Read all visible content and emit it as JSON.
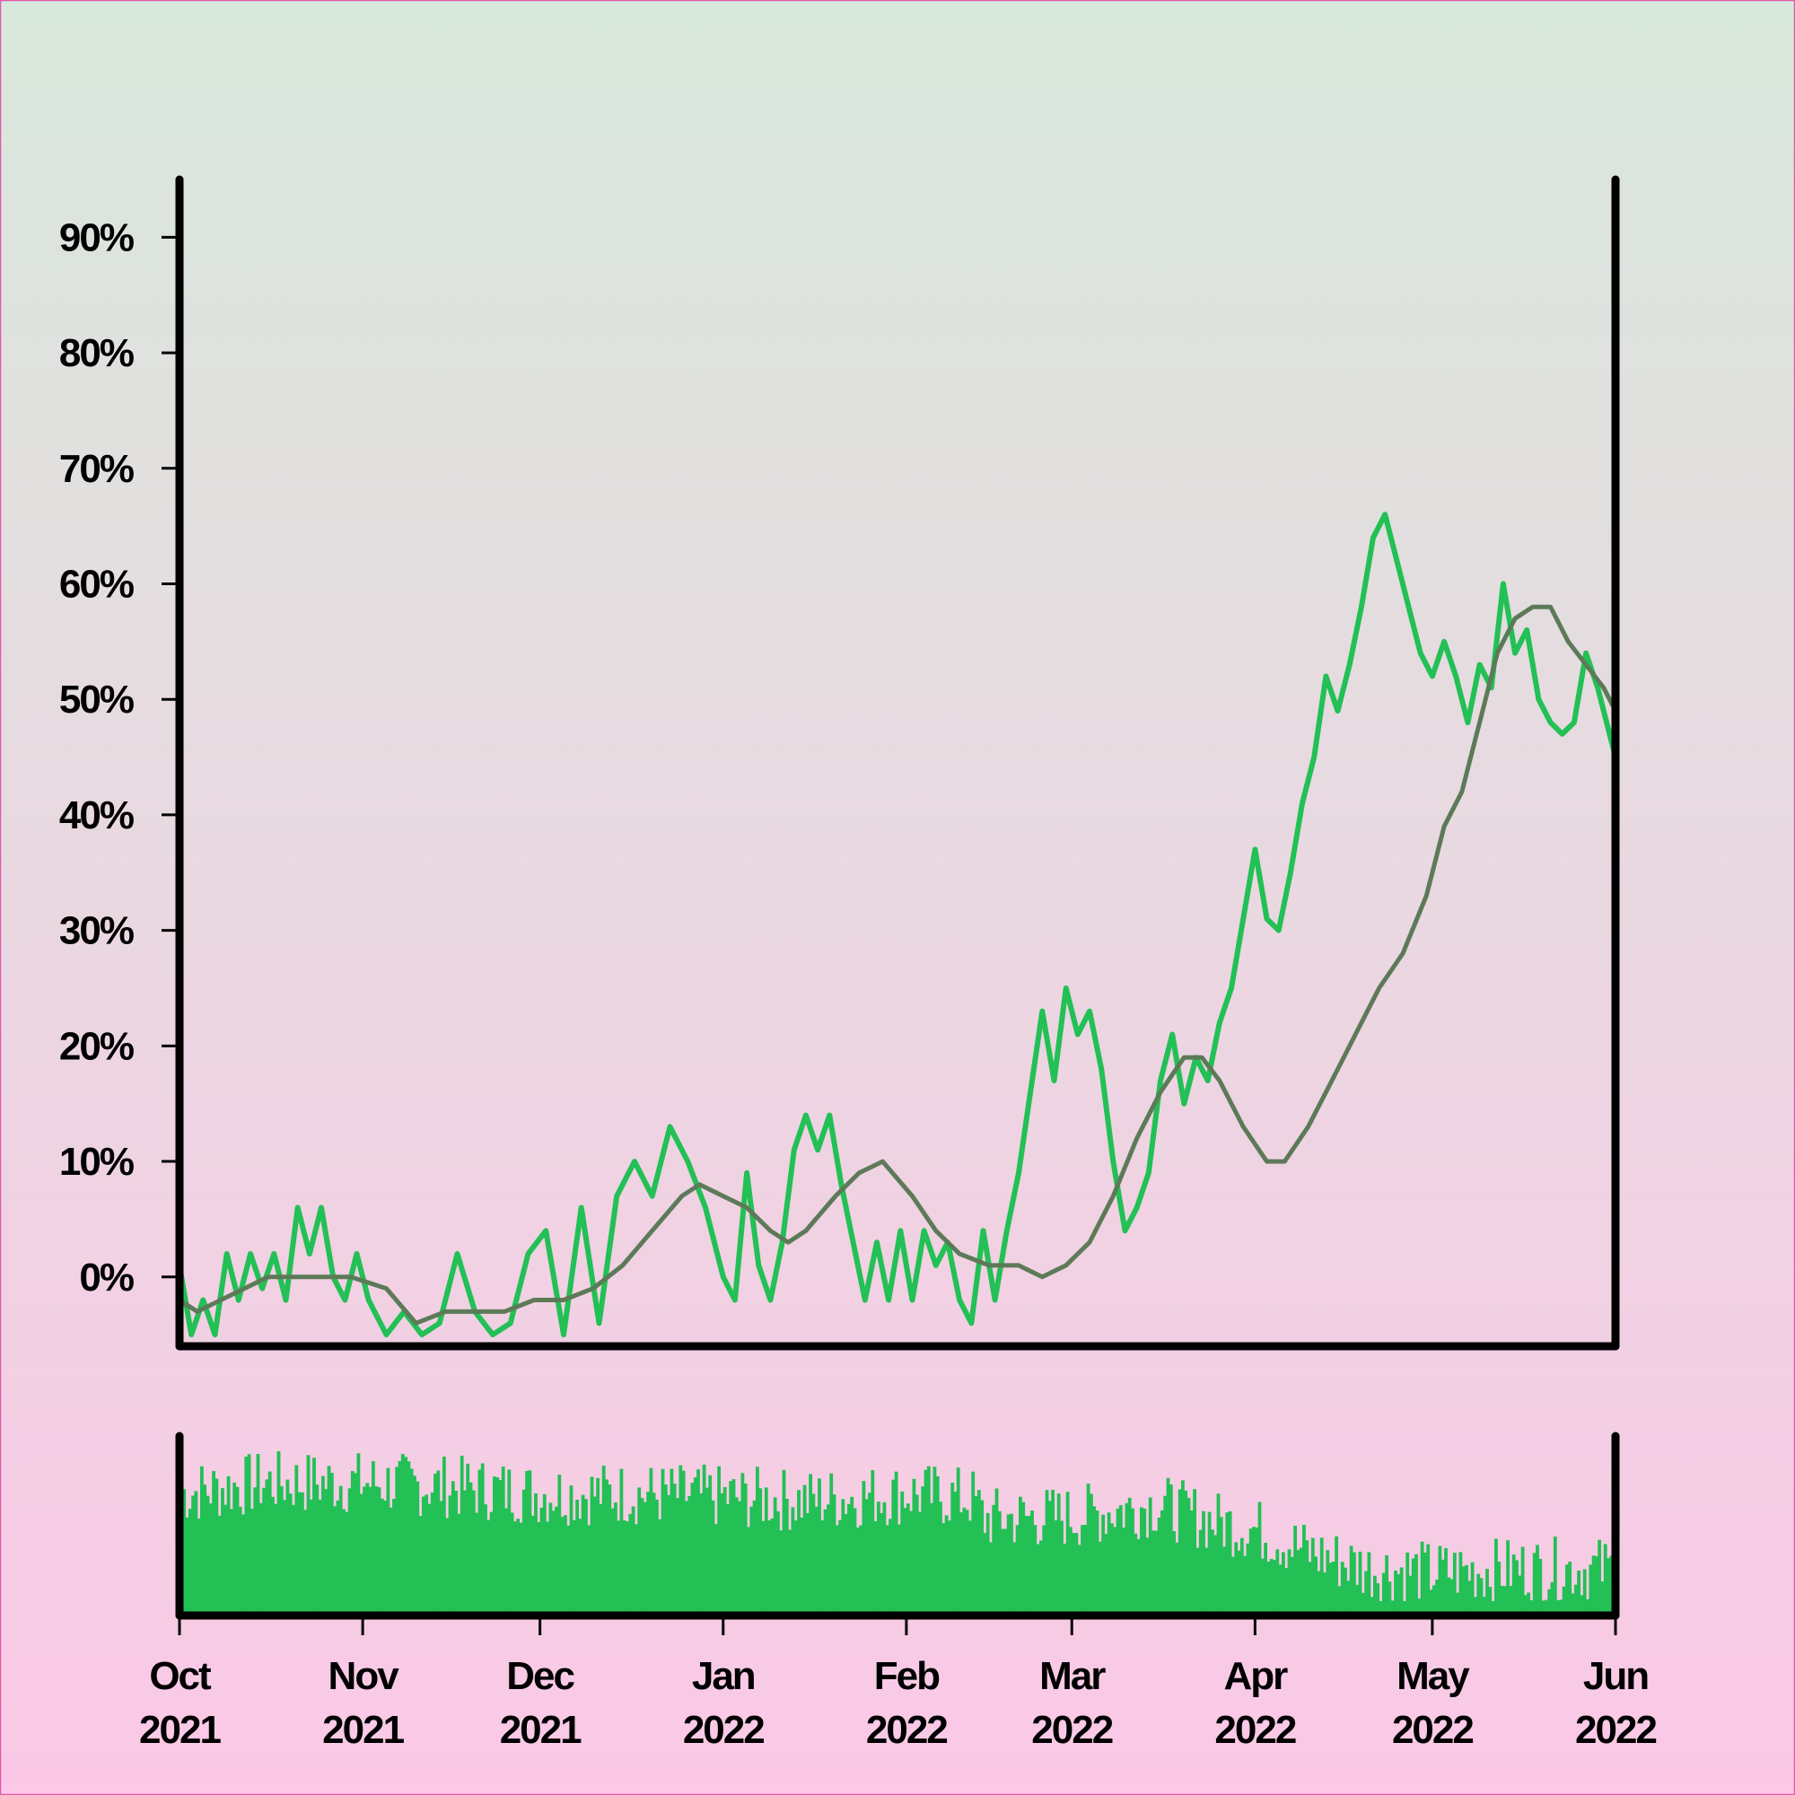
{
  "chart_data": {
    "type": "line",
    "title": "",
    "xlabel": "",
    "ylabel": "",
    "x_range": [
      "2021-10-01",
      "2022-06-01"
    ],
    "ylim": [
      -6,
      95
    ],
    "y_ticks": [
      0,
      10,
      20,
      30,
      40,
      50,
      60,
      70,
      80,
      90
    ],
    "y_tick_labels": [
      "0%",
      "10%",
      "20%",
      "30%",
      "40%",
      "50%",
      "60%",
      "70%",
      "80%",
      "90%"
    ],
    "x_ticks": [
      "2021-10-01",
      "2021-11-01",
      "2021-12-01",
      "2022-01-01",
      "2022-02-01",
      "2022-03-01",
      "2022-04-01",
      "2022-05-01",
      "2022-06-01"
    ],
    "x_tick_labels": [
      {
        "month": "Oct",
        "year": "2021"
      },
      {
        "month": "Nov",
        "year": "2021"
      },
      {
        "month": "Dec",
        "year": "2021"
      },
      {
        "month": "Jan",
        "year": "2022"
      },
      {
        "month": "Feb",
        "year": "2022"
      },
      {
        "month": "Mar",
        "year": "2022"
      },
      {
        "month": "Apr",
        "year": "2022"
      },
      {
        "month": "May",
        "year": "2022"
      },
      {
        "month": "Jun",
        "year": "2022"
      }
    ],
    "grid": false,
    "legend": "none",
    "colors": {
      "value": "#22c055",
      "moving_average": "#5d7a58",
      "volume": "#22c055",
      "axis": "#000000"
    },
    "series": [
      {
        "values": [
          [
            "2021-10-01",
            1
          ],
          [
            "2021-10-03",
            -5
          ],
          [
            "2021-10-05",
            -2
          ],
          [
            "2021-10-07",
            -5
          ],
          [
            "2021-10-09",
            2
          ],
          [
            "2021-10-11",
            -2
          ],
          [
            "2021-10-13",
            2
          ],
          [
            "2021-10-15",
            -1
          ],
          [
            "2021-10-17",
            2
          ],
          [
            "2021-10-19",
            -2
          ],
          [
            "2021-10-21",
            6
          ],
          [
            "2021-10-23",
            2
          ],
          [
            "2021-10-25",
            6
          ],
          [
            "2021-10-27",
            0
          ],
          [
            "2021-10-29",
            -2
          ],
          [
            "2021-10-31",
            2
          ],
          [
            "2021-11-02",
            -2
          ],
          [
            "2021-11-05",
            -5
          ],
          [
            "2021-11-08",
            -3
          ],
          [
            "2021-11-11",
            -5
          ],
          [
            "2021-11-14",
            -4
          ],
          [
            "2021-11-17",
            2
          ],
          [
            "2021-11-20",
            -3
          ],
          [
            "2021-11-23",
            -5
          ],
          [
            "2021-11-26",
            -4
          ],
          [
            "2021-11-29",
            2
          ],
          [
            "2021-12-02",
            4
          ],
          [
            "2021-12-05",
            -5
          ],
          [
            "2021-12-08",
            6
          ],
          [
            "2021-12-11",
            -4
          ],
          [
            "2021-12-14",
            7
          ],
          [
            "2021-12-17",
            10
          ],
          [
            "2021-12-20",
            7
          ],
          [
            "2021-12-23",
            13
          ],
          [
            "2021-12-26",
            10
          ],
          [
            "2021-12-29",
            6
          ],
          [
            "2022-01-01",
            0
          ],
          [
            "2022-01-03",
            -2
          ],
          [
            "2022-01-05",
            9
          ],
          [
            "2022-01-07",
            1
          ],
          [
            "2022-01-09",
            -2
          ],
          [
            "2022-01-11",
            3
          ],
          [
            "2022-01-13",
            11
          ],
          [
            "2022-01-15",
            14
          ],
          [
            "2022-01-17",
            11
          ],
          [
            "2022-01-19",
            14
          ],
          [
            "2022-01-21",
            8
          ],
          [
            "2022-01-23",
            3
          ],
          [
            "2022-01-25",
            -2
          ],
          [
            "2022-01-27",
            3
          ],
          [
            "2022-01-29",
            -2
          ],
          [
            "2022-01-31",
            4
          ],
          [
            "2022-02-02",
            -2
          ],
          [
            "2022-02-04",
            4
          ],
          [
            "2022-02-06",
            1
          ],
          [
            "2022-02-08",
            3
          ],
          [
            "2022-02-10",
            -2
          ],
          [
            "2022-02-12",
            -4
          ],
          [
            "2022-02-14",
            4
          ],
          [
            "2022-02-16",
            -2
          ],
          [
            "2022-02-18",
            4
          ],
          [
            "2022-02-20",
            9
          ],
          [
            "2022-02-22",
            16
          ],
          [
            "2022-02-24",
            23
          ],
          [
            "2022-02-26",
            17
          ],
          [
            "2022-02-28",
            25
          ],
          [
            "2022-03-02",
            21
          ],
          [
            "2022-03-04",
            23
          ],
          [
            "2022-03-06",
            18
          ],
          [
            "2022-03-08",
            10
          ],
          [
            "2022-03-10",
            4
          ],
          [
            "2022-03-12",
            6
          ],
          [
            "2022-03-14",
            9
          ],
          [
            "2022-03-16",
            17
          ],
          [
            "2022-03-18",
            21
          ],
          [
            "2022-03-20",
            15
          ],
          [
            "2022-03-22",
            19
          ],
          [
            "2022-03-24",
            17
          ],
          [
            "2022-03-26",
            22
          ],
          [
            "2022-03-28",
            25
          ],
          [
            "2022-03-30",
            31
          ],
          [
            "2022-04-01",
            37
          ],
          [
            "2022-04-03",
            31
          ],
          [
            "2022-04-05",
            30
          ],
          [
            "2022-04-07",
            35
          ],
          [
            "2022-04-09",
            41
          ],
          [
            "2022-04-11",
            45
          ],
          [
            "2022-04-13",
            52
          ],
          [
            "2022-04-15",
            49
          ],
          [
            "2022-04-17",
            53
          ],
          [
            "2022-04-19",
            58
          ],
          [
            "2022-04-21",
            64
          ],
          [
            "2022-04-23",
            66
          ],
          [
            "2022-04-25",
            62
          ],
          [
            "2022-04-27",
            58
          ],
          [
            "2022-04-29",
            54
          ],
          [
            "2022-05-01",
            52
          ],
          [
            "2022-05-03",
            55
          ],
          [
            "2022-05-05",
            52
          ],
          [
            "2022-05-07",
            48
          ],
          [
            "2022-05-09",
            53
          ],
          [
            "2022-05-11",
            51
          ],
          [
            "2022-05-13",
            60
          ],
          [
            "2022-05-15",
            54
          ],
          [
            "2022-05-17",
            56
          ],
          [
            "2022-05-19",
            50
          ],
          [
            "2022-05-21",
            48
          ],
          [
            "2022-05-23",
            47
          ],
          [
            "2022-05-25",
            48
          ],
          [
            "2022-05-27",
            54
          ],
          [
            "2022-05-29",
            51
          ],
          [
            "2022-06-01",
            45
          ]
        ]
      },
      {
        "values": [
          [
            "2021-10-01",
            -2
          ],
          [
            "2021-10-04",
            -3
          ],
          [
            "2021-10-08",
            -2
          ],
          [
            "2021-10-12",
            -1
          ],
          [
            "2021-10-16",
            0
          ],
          [
            "2021-10-20",
            0
          ],
          [
            "2021-10-25",
            0
          ],
          [
            "2021-10-30",
            0
          ],
          [
            "2021-11-05",
            -1
          ],
          [
            "2021-11-10",
            -4
          ],
          [
            "2021-11-15",
            -3
          ],
          [
            "2021-11-20",
            -3
          ],
          [
            "2021-11-25",
            -3
          ],
          [
            "2021-11-30",
            -2
          ],
          [
            "2021-12-05",
            -2
          ],
          [
            "2021-12-10",
            -1
          ],
          [
            "2021-12-15",
            1
          ],
          [
            "2021-12-20",
            4
          ],
          [
            "2021-12-25",
            7
          ],
          [
            "2021-12-28",
            8
          ],
          [
            "2022-01-01",
            7
          ],
          [
            "2022-01-05",
            6
          ],
          [
            "2022-01-09",
            4
          ],
          [
            "2022-01-12",
            3
          ],
          [
            "2022-01-15",
            4
          ],
          [
            "2022-01-20",
            7
          ],
          [
            "2022-01-24",
            9
          ],
          [
            "2022-01-28",
            10
          ],
          [
            "2022-02-02",
            7
          ],
          [
            "2022-02-06",
            4
          ],
          [
            "2022-02-10",
            2
          ],
          [
            "2022-02-15",
            1
          ],
          [
            "2022-02-20",
            1
          ],
          [
            "2022-02-24",
            0
          ],
          [
            "2022-02-28",
            1
          ],
          [
            "2022-03-04",
            3
          ],
          [
            "2022-03-08",
            7
          ],
          [
            "2022-03-12",
            12
          ],
          [
            "2022-03-16",
            16
          ],
          [
            "2022-03-20",
            19
          ],
          [
            "2022-03-23",
            19
          ],
          [
            "2022-03-26",
            17
          ],
          [
            "2022-03-30",
            13
          ],
          [
            "2022-04-03",
            10
          ],
          [
            "2022-04-06",
            10
          ],
          [
            "2022-04-10",
            13
          ],
          [
            "2022-04-14",
            17
          ],
          [
            "2022-04-18",
            21
          ],
          [
            "2022-04-22",
            25
          ],
          [
            "2022-04-26",
            28
          ],
          [
            "2022-04-30",
            33
          ],
          [
            "2022-05-03",
            39
          ],
          [
            "2022-05-06",
            42
          ],
          [
            "2022-05-09",
            48
          ],
          [
            "2022-05-12",
            54
          ],
          [
            "2022-05-15",
            57
          ],
          [
            "2022-05-18",
            58
          ],
          [
            "2022-05-21",
            58
          ],
          [
            "2022-05-24",
            55
          ],
          [
            "2022-05-27",
            53
          ],
          [
            "2022-05-30",
            51
          ],
          [
            "2022-06-01",
            49
          ]
        ]
      }
    ],
    "volume": {
      "ylim": [
        0,
        100
      ],
      "segments": [
        [
          "2021-10-01",
          68
        ],
        [
          "2021-10-15",
          74
        ],
        [
          "2021-11-01",
          74
        ],
        [
          "2021-11-15",
          72
        ],
        [
          "2021-12-01",
          68
        ],
        [
          "2021-12-15",
          68
        ],
        [
          "2022-01-01",
          66
        ],
        [
          "2022-01-15",
          64
        ],
        [
          "2022-02-01",
          68
        ],
        [
          "2022-02-12",
          65
        ],
        [
          "2022-02-14",
          54
        ],
        [
          "2022-03-01",
          55
        ],
        [
          "2022-03-15",
          62
        ],
        [
          "2022-03-25",
          52
        ],
        [
          "2022-04-01",
          48
        ],
        [
          "2022-04-10",
          35
        ],
        [
          "2022-04-20",
          26
        ],
        [
          "2022-05-01",
          24
        ],
        [
          "2022-05-15",
          26
        ],
        [
          "2022-06-01",
          26
        ]
      ]
    }
  }
}
